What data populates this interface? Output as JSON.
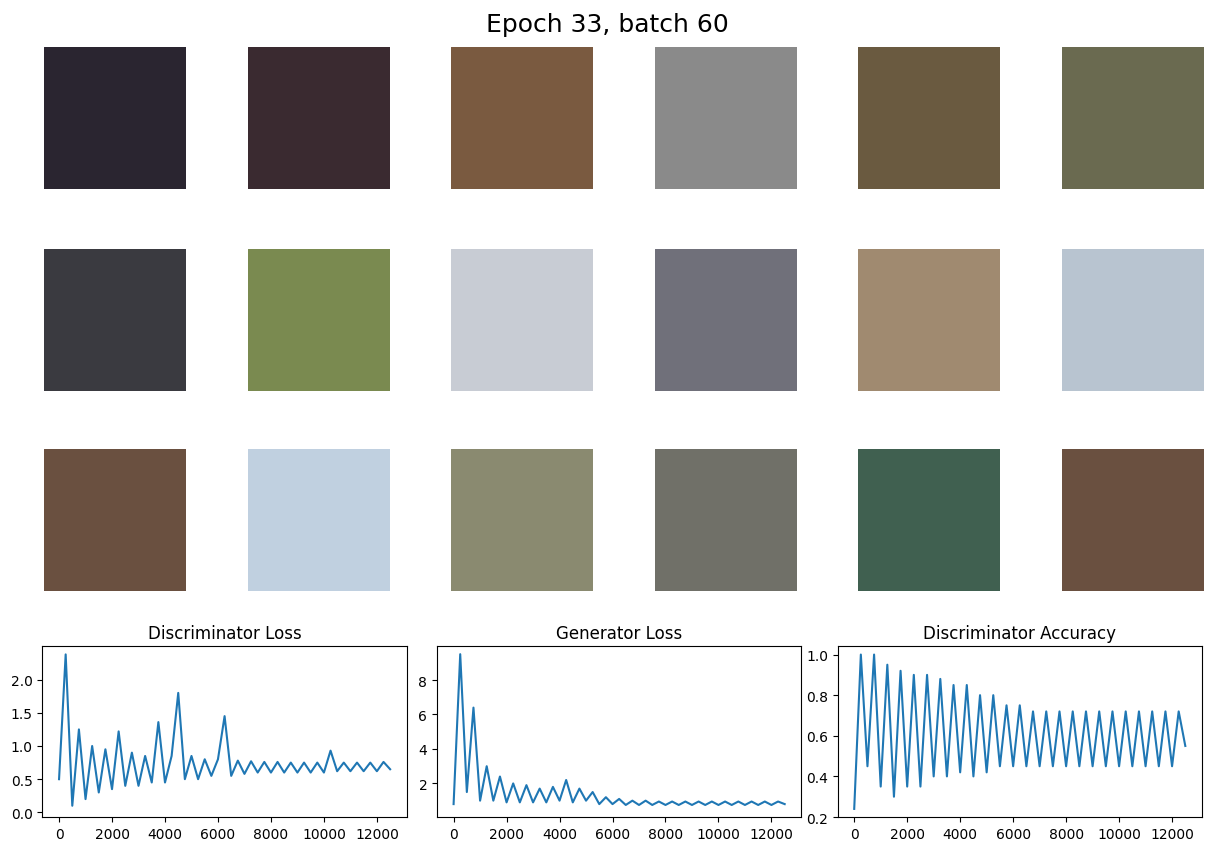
{
  "title": "Epoch 33, batch 60",
  "images": [
    {
      "color": "#2a2530"
    },
    {
      "color": "#3a2a30"
    },
    {
      "color": "#7a5a40"
    },
    {
      "color": "#8a8a8a"
    },
    {
      "color": "#6a5a40"
    },
    {
      "color": "#6a6a50"
    },
    {
      "color": "#3a3a40"
    },
    {
      "color": "#7a8a50"
    },
    {
      "color": "#c8ccd4"
    },
    {
      "color": "#70707a"
    },
    {
      "color": "#a08a70"
    },
    {
      "color": "#b8c4d0"
    },
    {
      "color": "#6a5040"
    },
    {
      "color": "#c0d0e0"
    },
    {
      "color": "#8a8a70"
    },
    {
      "color": "#707068"
    },
    {
      "color": "#406050"
    },
    {
      "color": "#6a5040"
    }
  ],
  "chart_data": [
    {
      "type": "line",
      "title": "Discriminator Loss",
      "color": "#1f77b4",
      "x": [
        0,
        250,
        500,
        750,
        1000,
        1250,
        1500,
        1750,
        2000,
        2250,
        2500,
        2750,
        3000,
        3250,
        3500,
        3750,
        4000,
        4250,
        4500,
        4750,
        5000,
        5250,
        5500,
        5750,
        6000,
        6250,
        6500,
        6750,
        7000,
        7250,
        7500,
        7750,
        8000,
        8250,
        8500,
        8750,
        9000,
        9250,
        9500,
        9750,
        10000,
        10250,
        10500,
        10750,
        11000,
        11250,
        11500,
        11750,
        12000,
        12250,
        12500
      ],
      "values": [
        0.5,
        2.38,
        0.1,
        1.25,
        0.2,
        1.0,
        0.3,
        0.95,
        0.35,
        1.22,
        0.4,
        0.9,
        0.4,
        0.85,
        0.45,
        1.36,
        0.45,
        0.85,
        1.8,
        0.5,
        0.85,
        0.5,
        0.8,
        0.55,
        0.8,
        1.45,
        0.55,
        0.78,
        0.58,
        0.77,
        0.6,
        0.76,
        0.6,
        0.76,
        0.6,
        0.75,
        0.6,
        0.75,
        0.6,
        0.75,
        0.6,
        0.93,
        0.62,
        0.75,
        0.62,
        0.75,
        0.62,
        0.75,
        0.62,
        0.76,
        0.65
      ],
      "xlim": [
        -625,
        13125
      ],
      "xticks": [
        0,
        2000,
        4000,
        6000,
        8000,
        10000,
        12000
      ],
      "ylim": [
        -0.07,
        2.5
      ],
      "yticks": [
        {
          "value": 0,
          "label": "0.0"
        },
        0.5,
        {
          "value": 1,
          "label": "1.0"
        },
        1.5,
        {
          "value": 2,
          "label": "2.0"
        }
      ]
    },
    {
      "type": "line",
      "title": "Generator Loss",
      "color": "#1f77b4",
      "x": [
        0,
        250,
        500,
        750,
        1000,
        1250,
        1500,
        1750,
        2000,
        2250,
        2500,
        2750,
        3000,
        3250,
        3500,
        3750,
        4000,
        4250,
        4500,
        4750,
        5000,
        5250,
        5500,
        5750,
        6000,
        6250,
        6500,
        6750,
        7000,
        7250,
        7500,
        7750,
        8000,
        8250,
        8500,
        8750,
        9000,
        9250,
        9500,
        9750,
        10000,
        10250,
        10500,
        10750,
        11000,
        11250,
        11500,
        11750,
        12000,
        12250,
        12500
      ],
      "values": [
        0.8,
        9.5,
        1.5,
        6.4,
        1.0,
        3.0,
        1.0,
        2.4,
        0.9,
        2.0,
        0.9,
        1.9,
        0.9,
        1.7,
        0.9,
        1.8,
        1.0,
        2.2,
        0.9,
        1.7,
        1.0,
        1.5,
        0.8,
        1.2,
        0.8,
        1.1,
        0.75,
        1.0,
        0.75,
        1.0,
        0.75,
        0.95,
        0.75,
        0.95,
        0.75,
        0.95,
        0.75,
        0.95,
        0.75,
        0.95,
        0.75,
        0.95,
        0.75,
        0.95,
        0.75,
        0.95,
        0.75,
        0.95,
        0.75,
        0.95,
        0.8
      ],
      "xlim": [
        -625,
        13125
      ],
      "xticks": [
        0,
        2000,
        4000,
        6000,
        8000,
        10000,
        12000
      ],
      "ylim": [
        0.05,
        9.95
      ],
      "yticks": [
        2,
        4,
        6,
        8
      ]
    },
    {
      "type": "line",
      "title": "Discriminator Accuracy",
      "color": "#1f77b4",
      "x": [
        0,
        250,
        500,
        750,
        1000,
        1250,
        1500,
        1750,
        2000,
        2250,
        2500,
        2750,
        3000,
        3250,
        3500,
        3750,
        4000,
        4250,
        4500,
        4750,
        5000,
        5250,
        5500,
        5750,
        6000,
        6250,
        6500,
        6750,
        7000,
        7250,
        7500,
        7750,
        8000,
        8250,
        8500,
        8750,
        9000,
        9250,
        9500,
        9750,
        10000,
        10250,
        10500,
        10750,
        11000,
        11250,
        11500,
        11750,
        12000,
        12250,
        12500
      ],
      "values": [
        0.24,
        1.0,
        0.45,
        1.0,
        0.35,
        0.95,
        0.3,
        0.92,
        0.35,
        0.9,
        0.35,
        0.9,
        0.4,
        0.88,
        0.4,
        0.85,
        0.42,
        0.85,
        0.4,
        0.8,
        0.42,
        0.8,
        0.45,
        0.75,
        0.45,
        0.75,
        0.45,
        0.72,
        0.45,
        0.72,
        0.45,
        0.72,
        0.45,
        0.72,
        0.45,
        0.72,
        0.45,
        0.72,
        0.45,
        0.72,
        0.45,
        0.72,
        0.45,
        0.72,
        0.45,
        0.72,
        0.45,
        0.72,
        0.45,
        0.72,
        0.55
      ],
      "xlim": [
        -625,
        13125
      ],
      "xticks": [
        0,
        2000,
        4000,
        6000,
        8000,
        10000,
        12000
      ],
      "ylim": [
        0.2,
        1.04
      ],
      "yticks": [
        0.2,
        0.4,
        0.6,
        0.8,
        {
          "value": 1,
          "label": "1.0"
        }
      ]
    }
  ]
}
